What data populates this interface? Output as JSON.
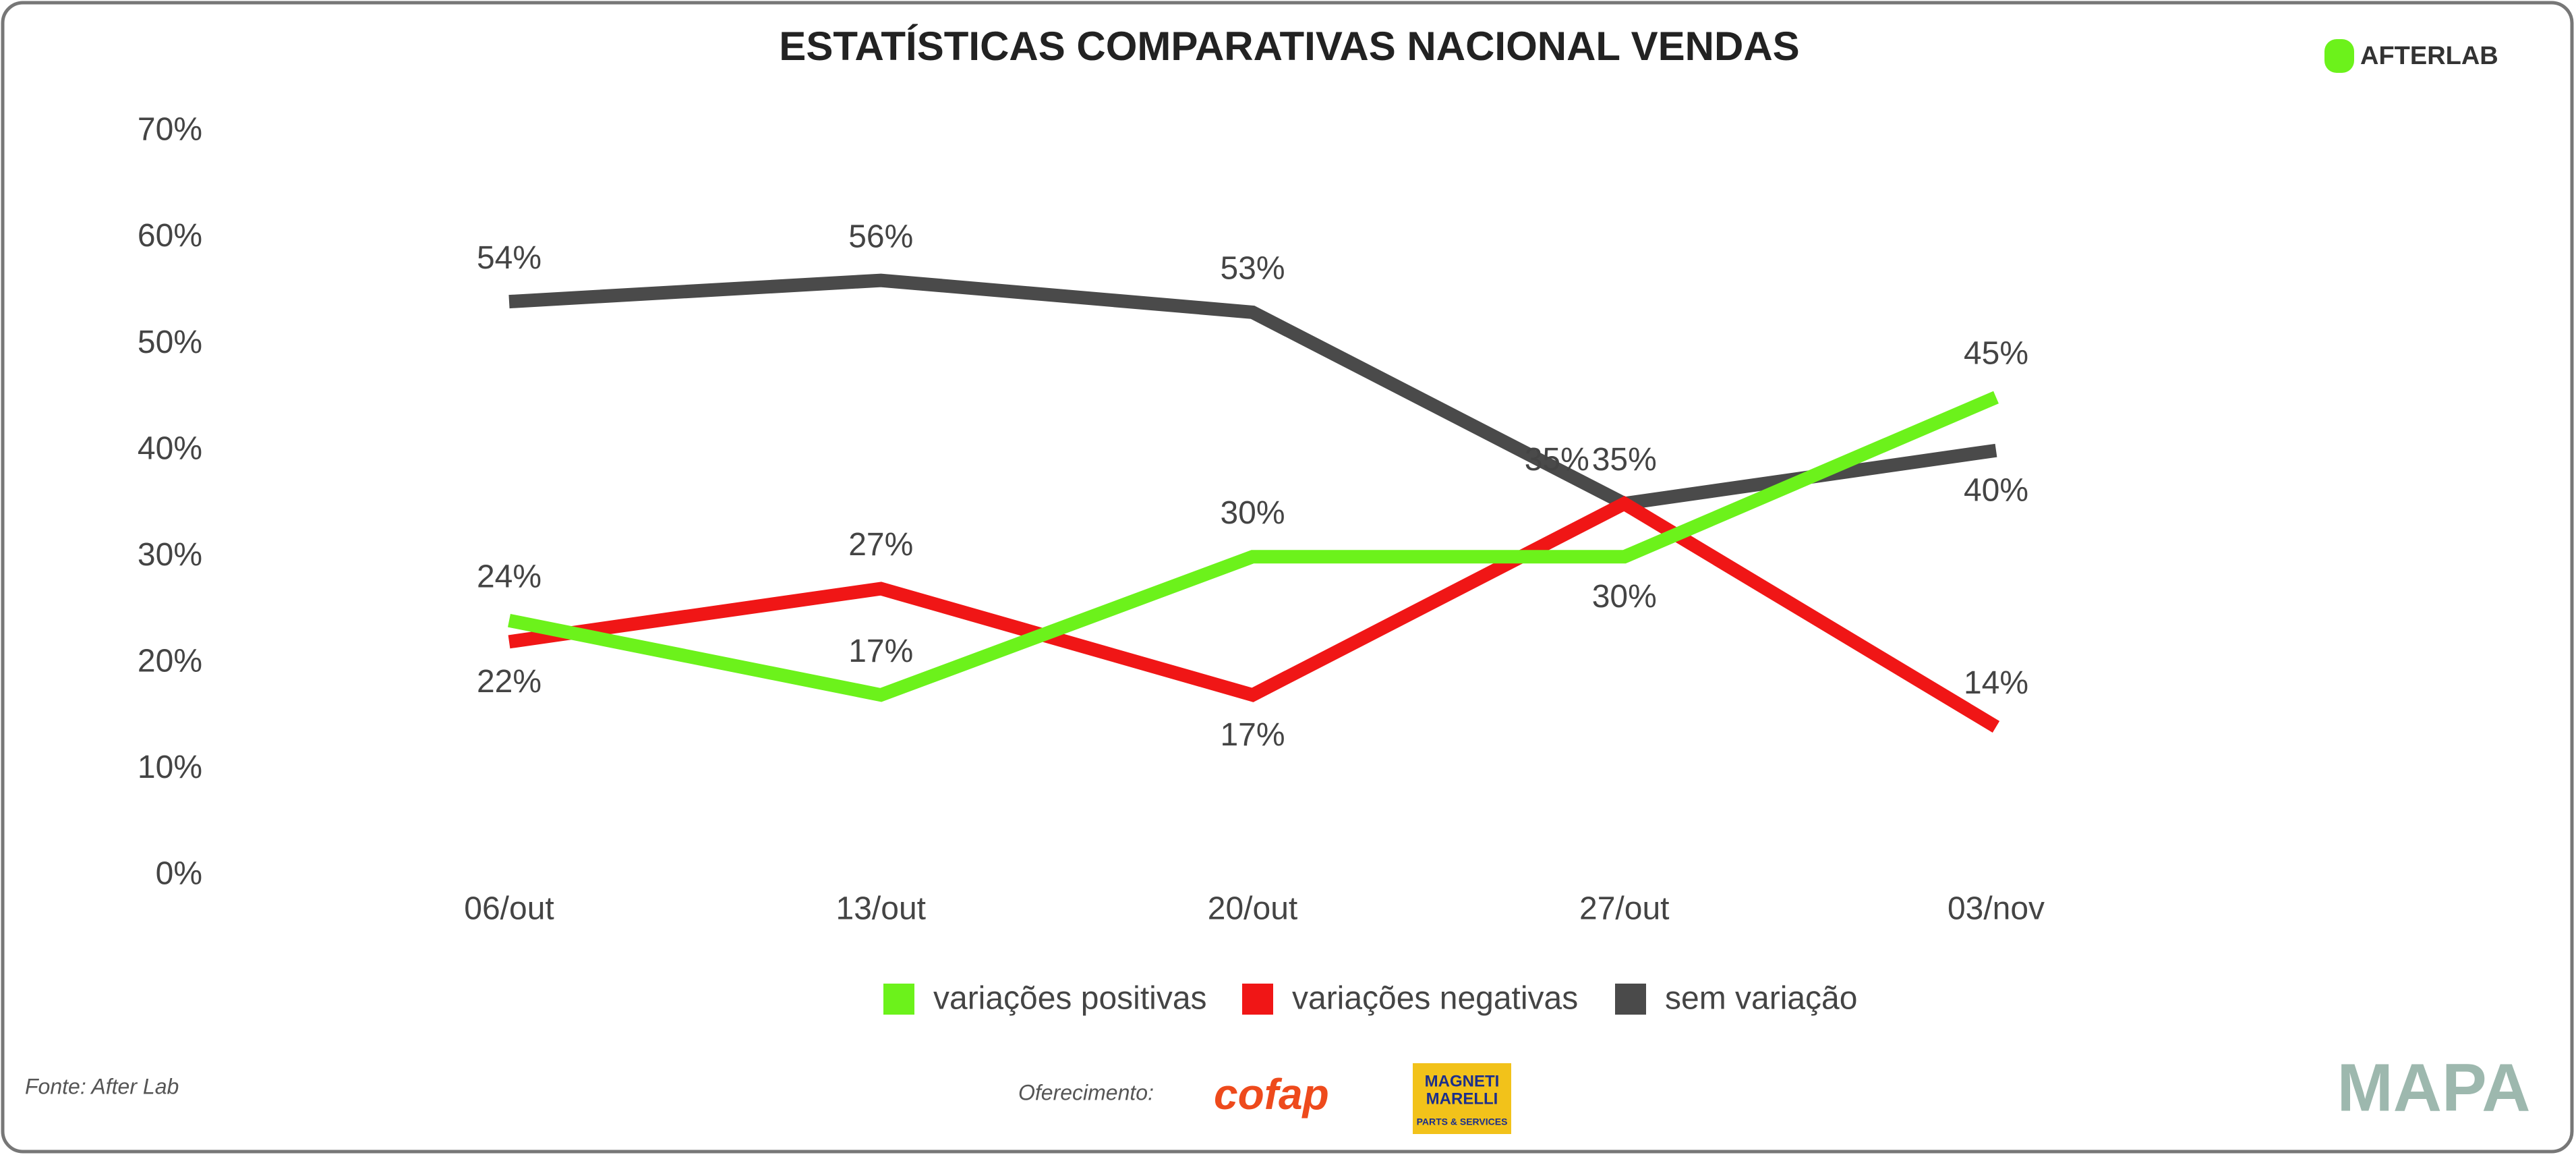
{
  "chart_data": {
    "type": "line",
    "title": "ESTATÍSTICAS COMPARATIVAS NACIONAL VENDAS",
    "categories": [
      "06/out",
      "13/out",
      "20/out",
      "27/out",
      "03/nov"
    ],
    "series": [
      {
        "name": "variações positivas",
        "color": "#6cf21b",
        "values": [
          24,
          17,
          30,
          30,
          45
        ],
        "value_labels": [
          "24%",
          "17%",
          "30%",
          "30%",
          "45%"
        ]
      },
      {
        "name": "variações negativas",
        "color": "#f01616",
        "values": [
          22,
          27,
          17,
          35,
          14
        ],
        "value_labels": [
          "22%",
          "27%",
          "17%",
          "35%",
          "14%"
        ]
      },
      {
        "name": "sem variação",
        "color": "#4a4a4a",
        "values": [
          54,
          56,
          53,
          35,
          40
        ],
        "value_labels": [
          "54%",
          "56%",
          "53%",
          "35%",
          "40%"
        ]
      }
    ],
    "ylim": [
      0,
      70
    ],
    "yticks": [
      {
        "value": 0,
        "label": "0%"
      },
      {
        "value": 10,
        "label": "10%"
      },
      {
        "value": 20,
        "label": "20%"
      },
      {
        "value": 30,
        "label": "30%"
      },
      {
        "value": 40,
        "label": "40%"
      },
      {
        "value": 50,
        "label": "50%"
      },
      {
        "value": 60,
        "label": "60%"
      },
      {
        "value": 70,
        "label": "70%"
      }
    ],
    "grid": false,
    "legend": "bottom"
  },
  "source": "Fonte: After Lab",
  "sponsor_label": "Oferecimento:",
  "logos": {
    "afterlab": "AFTERLAB",
    "cofap": "cofap",
    "magneti_marelli": [
      "MAGNETI",
      "MARELLI",
      "PARTS & SERVICES"
    ],
    "mapa": "MAPA"
  }
}
